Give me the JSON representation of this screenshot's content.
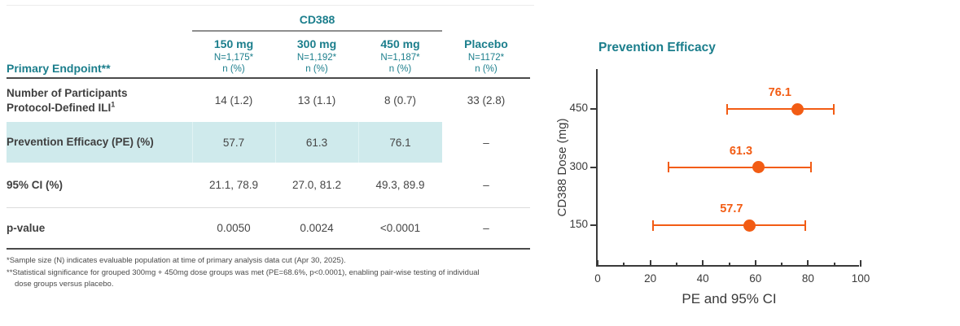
{
  "colors": {
    "teal": "#1b7e8c",
    "orange": "#f25c14",
    "highlight": "#cfeaec",
    "axis": "#3a3a3a"
  },
  "table": {
    "group_header": "CD388",
    "row_header": "Primary Endpoint**",
    "columns": [
      {
        "dose": "150 mg",
        "n": "N=1,175*",
        "unit": "n (%)"
      },
      {
        "dose": "300 mg",
        "n": "N=1,192*",
        "unit": "n (%)"
      },
      {
        "dose": "450 mg",
        "n": "N=1,187*",
        "unit": "n (%)"
      },
      {
        "dose": "Placebo",
        "n": "N=1172*",
        "unit": "n (%)"
      }
    ],
    "rows": [
      {
        "label_line1": "Number of Participants",
        "label_line2": "Protocol-Defined ILI",
        "sup": "1",
        "values": [
          "14 (1.2)",
          "13 (1.1)",
          "8 (0.7)",
          "33 (2.8)"
        ]
      },
      {
        "label": "Prevention Efficacy (PE) (%)",
        "values": [
          "57.7",
          "61.3",
          "76.1",
          "–"
        ],
        "highlight": true
      },
      {
        "label": "95% CI (%)",
        "values": [
          "21.1, 78.9",
          "27.0, 81.2",
          "49.3, 89.9",
          "–"
        ]
      },
      {
        "label": "p-value",
        "values": [
          "0.0050",
          "0.0024",
          "<0.0001",
          "–"
        ]
      }
    ],
    "footnotes": [
      "*Sample size (N) indicates evaluable population at time of primary analysis data cut (Apr 30, 2025).",
      "**Statistical significance for grouped 300mg + 450mg dose groups was met (PE=68.6%, p<0.0001), enabling pair-wise testing of individual dose groups versus placebo."
    ]
  },
  "chart_data": {
    "type": "scatter",
    "title": "Prevention Efficacy",
    "xlabel": "PE and 95% CI",
    "ylabel": "CD388 Dose (mg)",
    "xlim": [
      0,
      100
    ],
    "x_major_ticks": [
      0,
      20,
      40,
      60,
      80,
      100
    ],
    "x_minor_ticks": [
      10,
      30,
      50,
      70,
      90
    ],
    "grid": false,
    "legend": "none",
    "y_categories": [
      "450",
      "300",
      "150"
    ],
    "points": [
      {
        "dose": "450",
        "pe": 76.1,
        "ci_low": 49.3,
        "ci_high": 89.9,
        "label": "76.1"
      },
      {
        "dose": "300",
        "pe": 61.3,
        "ci_low": 27.0,
        "ci_high": 81.2,
        "label": "61.3"
      },
      {
        "dose": "150",
        "pe": 57.7,
        "ci_low": 21.1,
        "ci_high": 78.9,
        "label": "57.7"
      }
    ]
  }
}
